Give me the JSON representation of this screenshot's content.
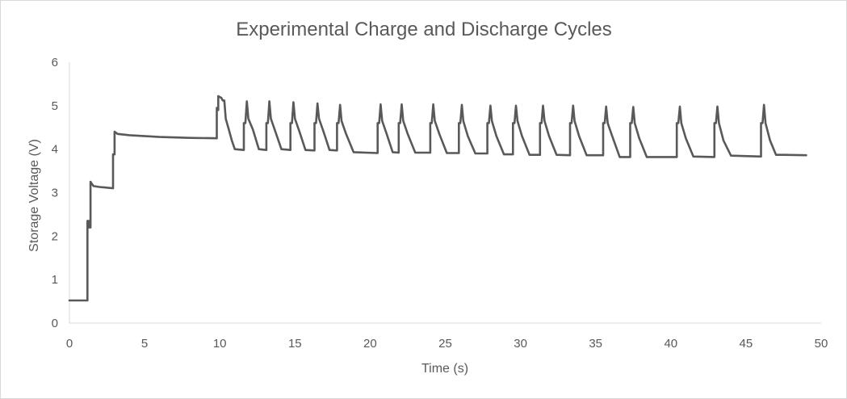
{
  "chart_data": {
    "type": "line",
    "title": "Experimental Charge and Discharge Cycles",
    "xlabel": "Time (s)",
    "ylabel": "Storage Voltage (V)",
    "xlim": [
      0,
      50
    ],
    "ylim": [
      0,
      6
    ],
    "xticks": [
      0,
      5,
      10,
      15,
      20,
      25,
      30,
      35,
      40,
      45,
      50
    ],
    "yticks": [
      0,
      1,
      2,
      3,
      4,
      5,
      6
    ],
    "grid": false,
    "legend": "none",
    "series_color": "#595959",
    "series": [
      {
        "values": [
          [
            0.0,
            0.52
          ],
          [
            1.2,
            0.52
          ],
          [
            1.2,
            2.35
          ],
          [
            1.3,
            2.35
          ],
          [
            1.3,
            2.2
          ],
          [
            1.4,
            2.2
          ],
          [
            1.4,
            3.25
          ],
          [
            1.5,
            3.2
          ],
          [
            1.6,
            3.15
          ],
          [
            2.0,
            3.13
          ],
          [
            2.9,
            3.1
          ],
          [
            2.9,
            3.88
          ],
          [
            3.0,
            3.88
          ],
          [
            3.0,
            4.4
          ],
          [
            3.2,
            4.35
          ],
          [
            4.0,
            4.32
          ],
          [
            6.0,
            4.28
          ],
          [
            8.0,
            4.26
          ],
          [
            9.8,
            4.25
          ],
          [
            9.8,
            4.95
          ],
          [
            9.9,
            4.9
          ],
          [
            9.9,
            5.22
          ],
          [
            10.1,
            5.18
          ],
          [
            10.2,
            5.12
          ],
          [
            10.3,
            5.12
          ],
          [
            10.4,
            4.7
          ],
          [
            10.6,
            4.45
          ],
          [
            10.8,
            4.2
          ],
          [
            11.0,
            4.0
          ],
          [
            11.6,
            3.98
          ],
          [
            11.6,
            4.6
          ],
          [
            11.7,
            4.6
          ],
          [
            11.8,
            5.1
          ],
          [
            11.9,
            4.7
          ],
          [
            12.2,
            4.45
          ],
          [
            12.6,
            4.0
          ],
          [
            13.1,
            3.98
          ],
          [
            13.1,
            4.6
          ],
          [
            13.2,
            4.6
          ],
          [
            13.3,
            5.1
          ],
          [
            13.4,
            4.7
          ],
          [
            13.7,
            4.4
          ],
          [
            14.1,
            4.0
          ],
          [
            14.7,
            3.98
          ],
          [
            14.7,
            4.6
          ],
          [
            14.8,
            4.6
          ],
          [
            14.9,
            5.08
          ],
          [
            15.0,
            4.7
          ],
          [
            15.3,
            4.4
          ],
          [
            15.7,
            3.98
          ],
          [
            16.3,
            3.97
          ],
          [
            16.3,
            4.6
          ],
          [
            16.4,
            4.6
          ],
          [
            16.5,
            5.05
          ],
          [
            16.6,
            4.7
          ],
          [
            16.9,
            4.4
          ],
          [
            17.3,
            3.98
          ],
          [
            17.8,
            3.97
          ],
          [
            17.8,
            4.6
          ],
          [
            17.9,
            4.6
          ],
          [
            18.0,
            5.02
          ],
          [
            18.1,
            4.65
          ],
          [
            18.4,
            4.35
          ],
          [
            18.9,
            3.93
          ],
          [
            20.5,
            3.91
          ],
          [
            20.5,
            4.6
          ],
          [
            20.6,
            4.6
          ],
          [
            20.7,
            5.03
          ],
          [
            20.8,
            4.65
          ],
          [
            21.1,
            4.35
          ],
          [
            21.5,
            3.93
          ],
          [
            21.9,
            3.92
          ],
          [
            21.9,
            4.6
          ],
          [
            22.0,
            4.6
          ],
          [
            22.1,
            5.03
          ],
          [
            22.2,
            4.65
          ],
          [
            22.5,
            4.35
          ],
          [
            23.0,
            3.92
          ],
          [
            24.0,
            3.92
          ],
          [
            24.0,
            4.6
          ],
          [
            24.1,
            4.6
          ],
          [
            24.2,
            5.03
          ],
          [
            24.3,
            4.65
          ],
          [
            24.6,
            4.35
          ],
          [
            25.1,
            3.91
          ],
          [
            25.9,
            3.91
          ],
          [
            25.9,
            4.6
          ],
          [
            26.0,
            4.6
          ],
          [
            26.1,
            5.02
          ],
          [
            26.2,
            4.65
          ],
          [
            26.5,
            4.3
          ],
          [
            27.0,
            3.9
          ],
          [
            27.8,
            3.9
          ],
          [
            27.8,
            4.6
          ],
          [
            27.9,
            4.6
          ],
          [
            28.0,
            5.0
          ],
          [
            28.1,
            4.65
          ],
          [
            28.4,
            4.3
          ],
          [
            28.9,
            3.88
          ],
          [
            29.5,
            3.88
          ],
          [
            29.5,
            4.6
          ],
          [
            29.6,
            4.6
          ],
          [
            29.7,
            5.0
          ],
          [
            29.8,
            4.65
          ],
          [
            30.1,
            4.3
          ],
          [
            30.6,
            3.87
          ],
          [
            31.3,
            3.87
          ],
          [
            31.3,
            4.6
          ],
          [
            31.4,
            4.6
          ],
          [
            31.5,
            5.0
          ],
          [
            31.6,
            4.65
          ],
          [
            31.9,
            4.3
          ],
          [
            32.4,
            3.87
          ],
          [
            33.3,
            3.86
          ],
          [
            33.3,
            4.6
          ],
          [
            33.4,
            4.6
          ],
          [
            33.5,
            5.0
          ],
          [
            33.6,
            4.65
          ],
          [
            33.9,
            4.3
          ],
          [
            34.4,
            3.86
          ],
          [
            35.5,
            3.86
          ],
          [
            35.5,
            4.6
          ],
          [
            35.6,
            4.6
          ],
          [
            35.7,
            4.98
          ],
          [
            35.8,
            4.6
          ],
          [
            36.1,
            4.3
          ],
          [
            36.6,
            3.82
          ],
          [
            37.3,
            3.82
          ],
          [
            37.3,
            4.6
          ],
          [
            37.4,
            4.6
          ],
          [
            37.5,
            4.97
          ],
          [
            37.6,
            4.6
          ],
          [
            37.9,
            4.25
          ],
          [
            38.4,
            3.82
          ],
          [
            40.4,
            3.82
          ],
          [
            40.4,
            4.6
          ],
          [
            40.5,
            4.6
          ],
          [
            40.6,
            4.98
          ],
          [
            40.7,
            4.6
          ],
          [
            41.0,
            4.25
          ],
          [
            41.5,
            3.83
          ],
          [
            42.9,
            3.82
          ],
          [
            42.9,
            4.6
          ],
          [
            43.0,
            4.6
          ],
          [
            43.1,
            4.98
          ],
          [
            43.2,
            4.6
          ],
          [
            43.5,
            4.2
          ],
          [
            44.0,
            3.85
          ],
          [
            46.0,
            3.83
          ],
          [
            46.0,
            4.6
          ],
          [
            46.1,
            4.6
          ],
          [
            46.2,
            5.02
          ],
          [
            46.3,
            4.6
          ],
          [
            46.6,
            4.2
          ],
          [
            47.0,
            3.87
          ],
          [
            47.5,
            3.87
          ],
          [
            49.0,
            3.86
          ]
        ]
      }
    ]
  }
}
